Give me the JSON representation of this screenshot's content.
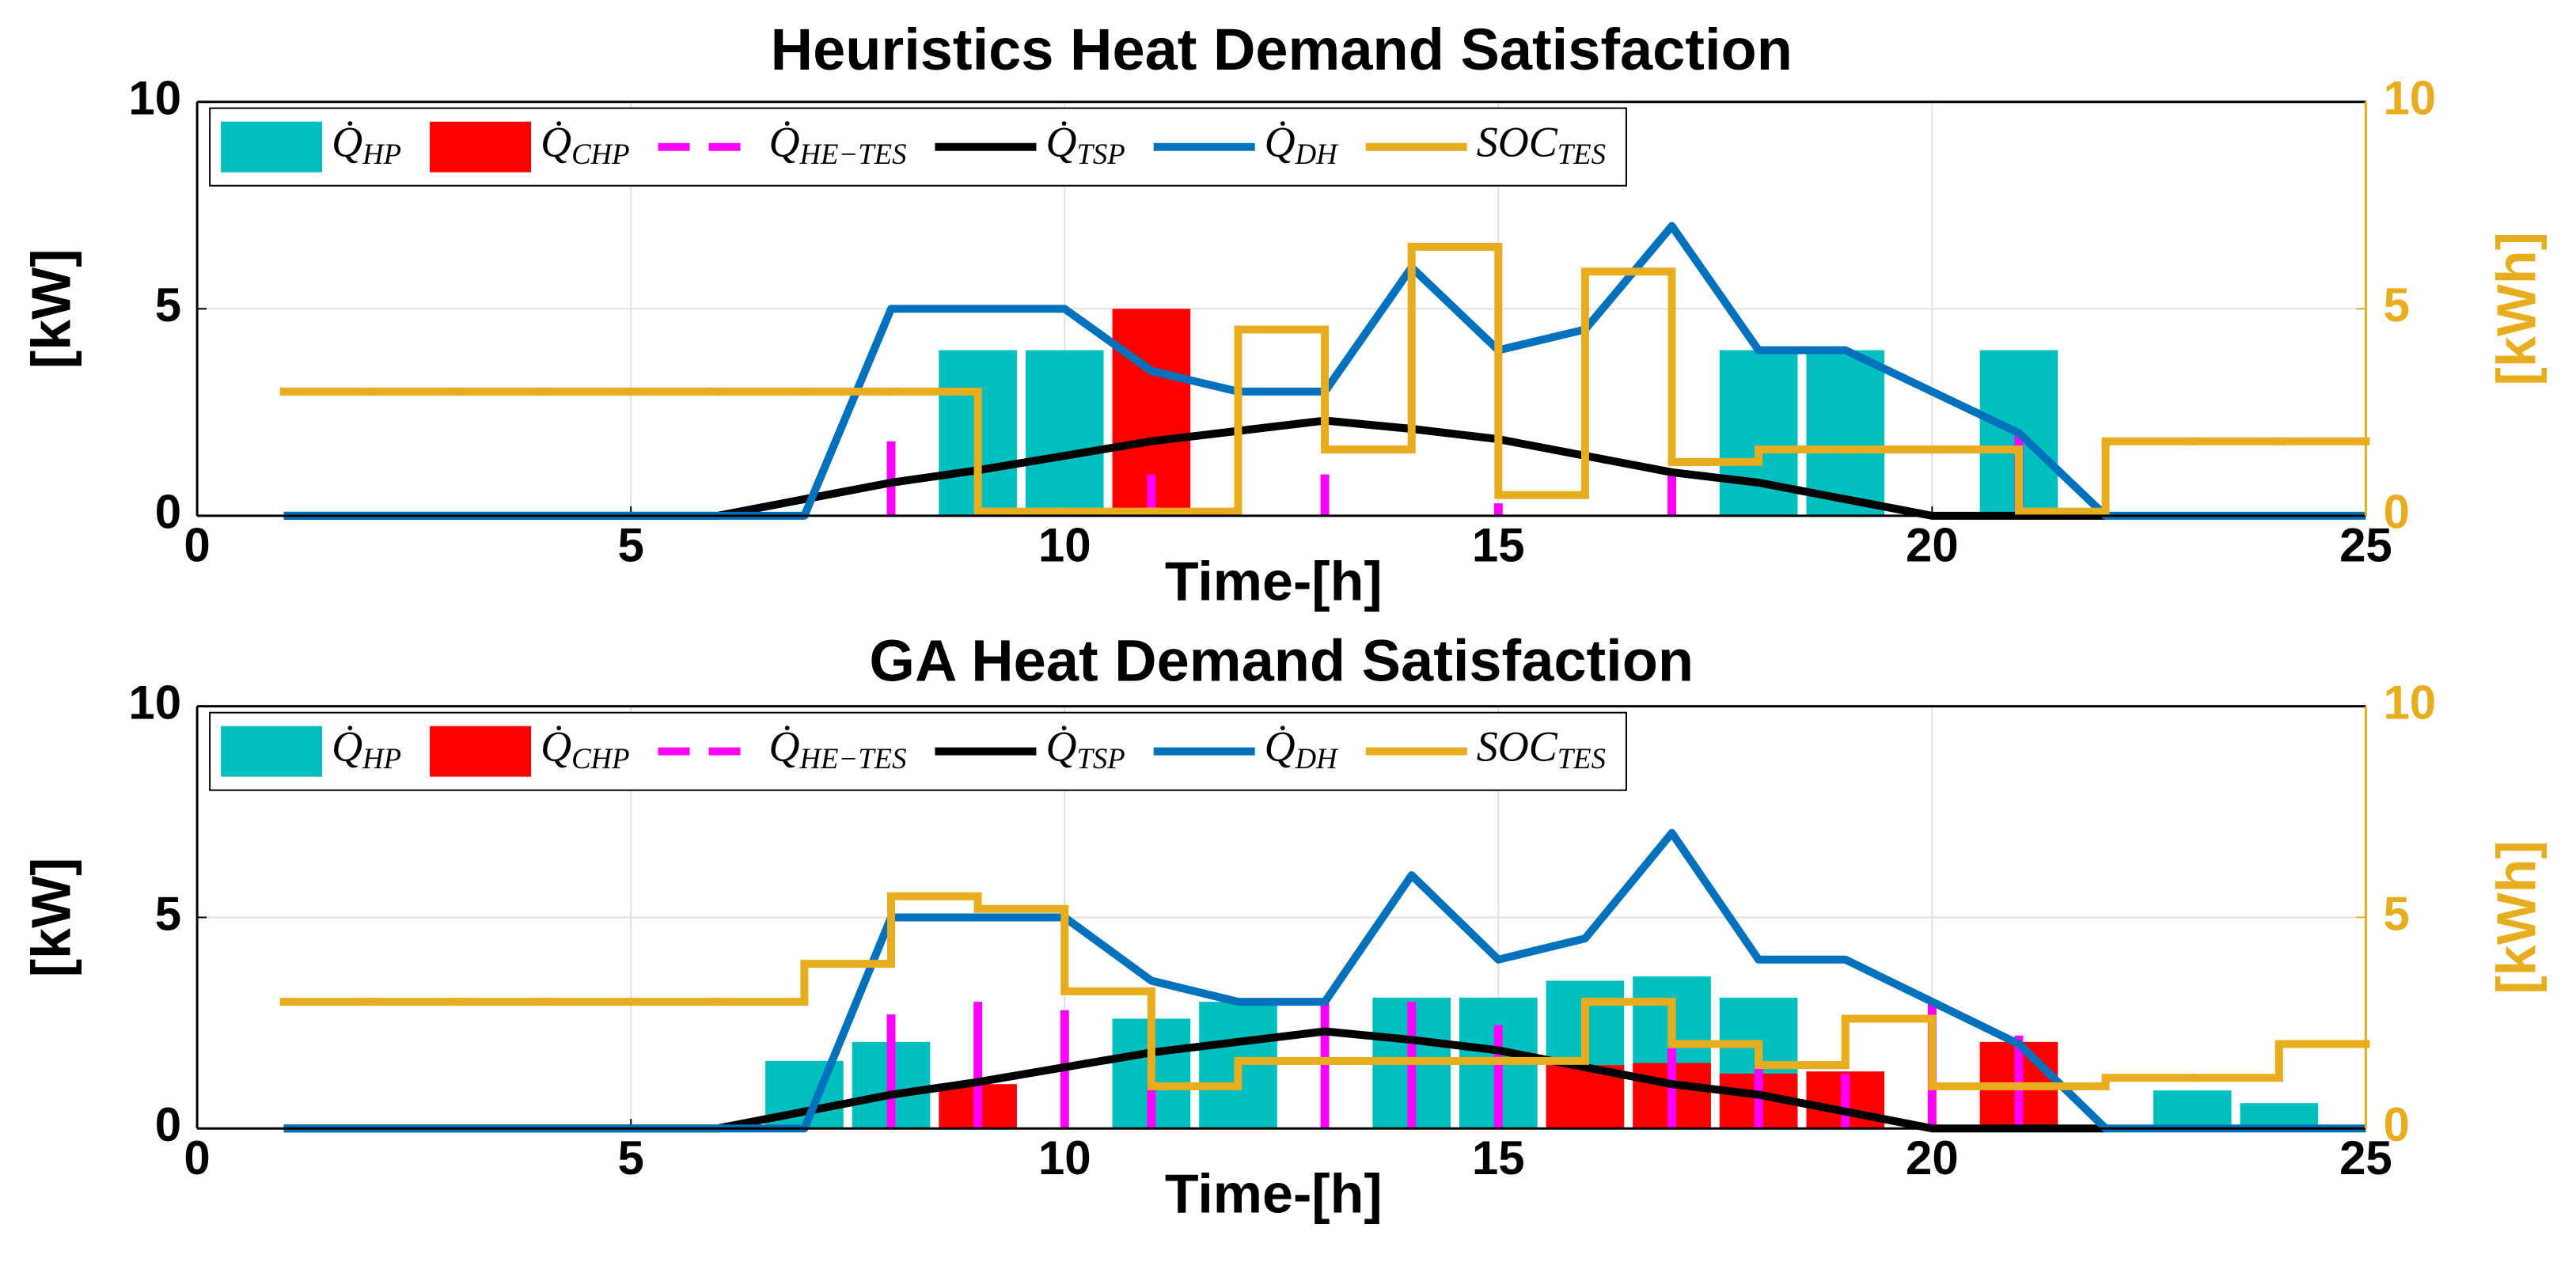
{
  "chart_data": [
    {
      "type": "combo",
      "title": "Heuristics Heat Demand Satisfaction",
      "xlabel": "Time-[h]",
      "ylabel": "[kW]",
      "y2label": "[kWh]",
      "xlim": [
        0,
        25
      ],
      "xticks": [
        0,
        5,
        10,
        15,
        20,
        25
      ],
      "ylim": [
        0,
        10
      ],
      "yticks": [
        0,
        5,
        10
      ],
      "y2lim": [
        0,
        10
      ],
      "y2ticks": [
        0,
        5,
        10
      ],
      "grid": true,
      "legend": "upper left",
      "y2color": "#e8ad1f",
      "series": [
        {
          "name": "Q̇HP",
          "kind": "bar",
          "color": "#00bfbf",
          "x": [
            9,
            10,
            18,
            19,
            21
          ],
          "values": [
            4,
            4,
            4,
            4,
            4
          ]
        },
        {
          "name": "Q̇CHP",
          "kind": "bar",
          "color": "#ff0000",
          "x": [
            11
          ],
          "values": [
            5
          ]
        },
        {
          "name": "Q̇HE−TES",
          "kind": "stem",
          "color": "#ff00ff",
          "x": [
            8,
            11,
            13,
            15,
            17,
            21
          ],
          "values": [
            1.8,
            1.0,
            1.0,
            0.3,
            1.0,
            2.0
          ]
        },
        {
          "name": "Q̇TSP",
          "kind": "line",
          "color": "#000000",
          "x": [
            1,
            2,
            3,
            4,
            5,
            6,
            7,
            8,
            9,
            10,
            11,
            12,
            13,
            14,
            15,
            16,
            17,
            18,
            19,
            20,
            21,
            22
          ],
          "values": [
            0,
            0,
            0,
            0,
            0,
            0,
            0.4,
            0.8,
            1.1,
            1.45,
            1.8,
            2.05,
            2.3,
            2.1,
            1.85,
            1.45,
            1.05,
            0.8,
            0.4,
            0,
            0,
            0
          ]
        },
        {
          "name": "Q̇DH",
          "kind": "line",
          "color": "#0072bd",
          "x": [
            1,
            2,
            3,
            4,
            5,
            6,
            7,
            8,
            9,
            10,
            11,
            12,
            13,
            14,
            15,
            16,
            17,
            18,
            19,
            20,
            21,
            22,
            23,
            24,
            25
          ],
          "values": [
            0,
            0,
            0,
            0,
            0,
            0,
            0,
            5,
            5,
            5,
            3.5,
            3,
            3,
            6,
            4,
            4.5,
            7,
            4,
            4,
            3,
            2,
            0,
            0,
            0,
            0
          ]
        },
        {
          "name": "SOCTES",
          "kind": "stairs",
          "axis": "y2",
          "color": "#e8ad1f",
          "x": [
            1,
            2,
            3,
            4,
            5,
            6,
            7,
            8,
            9,
            10,
            11,
            12,
            13,
            14,
            15,
            16,
            17,
            18,
            19,
            20,
            21,
            22,
            23,
            24
          ],
          "values": [
            3,
            3,
            3,
            3,
            3,
            3,
            3,
            3,
            0.1,
            0.1,
            0.1,
            4.5,
            1.6,
            6.5,
            0.5,
            5.9,
            1.3,
            1.6,
            1.6,
            1.6,
            0.1,
            1.8,
            1.8,
            1.8
          ]
        }
      ]
    },
    {
      "type": "combo",
      "title": "GA Heat Demand Satisfaction",
      "xlabel": "Time-[h]",
      "ylabel": "[kW]",
      "y2label": "[kWh]",
      "xlim": [
        0,
        25
      ],
      "xticks": [
        0,
        5,
        10,
        15,
        20,
        25
      ],
      "ylim": [
        0,
        10
      ],
      "yticks": [
        0,
        5,
        10
      ],
      "y2lim": [
        0,
        10
      ],
      "y2ticks": [
        0,
        5,
        10
      ],
      "grid": true,
      "legend": "upper left",
      "y2color": "#e8ad1f",
      "series": [
        {
          "name": "Q̇HP",
          "kind": "bar",
          "color": "#00bfbf",
          "x": [
            7,
            8,
            11,
            12,
            14,
            15,
            16,
            17,
            18,
            23,
            24
          ],
          "values": [
            1.6,
            2.05,
            2.6,
            3.0,
            3.1,
            3.1,
            3.5,
            3.6,
            3.1,
            0.9,
            0.6
          ]
        },
        {
          "name": "Q̇CHP",
          "kind": "bar",
          "color": "#ff0000",
          "x": [
            9,
            16,
            17,
            18,
            19,
            21
          ],
          "values": [
            1.05,
            1.5,
            1.55,
            1.3,
            1.35,
            2.05
          ]
        },
        {
          "name": "Q̇HE−TES",
          "kind": "stem",
          "color": "#ff00ff",
          "x": [
            8,
            9,
            10,
            11,
            13,
            14,
            15,
            17,
            18,
            19,
            20,
            21
          ],
          "values": [
            2.7,
            3.0,
            2.8,
            1.0,
            3.0,
            3.0,
            2.45,
            1.9,
            1.5,
            1.3,
            3.0,
            2.2
          ]
        },
        {
          "name": "Q̇TSP",
          "kind": "line",
          "color": "#000000",
          "x": [
            1,
            2,
            3,
            4,
            5,
            6,
            7,
            8,
            9,
            10,
            11,
            12,
            13,
            14,
            15,
            16,
            17,
            18,
            19,
            20,
            21,
            22
          ],
          "values": [
            0,
            0,
            0,
            0,
            0,
            0,
            0.4,
            0.8,
            1.1,
            1.45,
            1.8,
            2.05,
            2.3,
            2.1,
            1.85,
            1.45,
            1.05,
            0.8,
            0.4,
            0,
            0,
            0
          ]
        },
        {
          "name": "Q̇DH",
          "kind": "line",
          "color": "#0072bd",
          "x": [
            1,
            2,
            3,
            4,
            5,
            6,
            7,
            8,
            9,
            10,
            11,
            12,
            13,
            14,
            15,
            16,
            17,
            18,
            19,
            20,
            21,
            22,
            23,
            24,
            25
          ],
          "values": [
            0,
            0,
            0,
            0,
            0,
            0,
            0,
            5,
            5,
            5,
            3.5,
            3,
            3,
            6,
            4,
            4.5,
            7,
            4,
            4,
            3,
            2,
            0,
            0,
            0,
            0
          ]
        },
        {
          "name": "SOCTES",
          "kind": "stairs",
          "axis": "y2",
          "color": "#e8ad1f",
          "x": [
            1,
            2,
            3,
            4,
            5,
            6,
            7,
            8,
            9,
            10,
            11,
            12,
            13,
            14,
            15,
            16,
            17,
            18,
            19,
            20,
            21,
            22,
            23,
            24
          ],
          "values": [
            3,
            3,
            3,
            3,
            3,
            3,
            3.9,
            5.5,
            5.2,
            3.25,
            1.0,
            1.6,
            1.6,
            1.6,
            1.6,
            3.0,
            2.0,
            1.5,
            2.6,
            1.0,
            1.0,
            1.2,
            1.2,
            2.0
          ]
        }
      ]
    }
  ]
}
